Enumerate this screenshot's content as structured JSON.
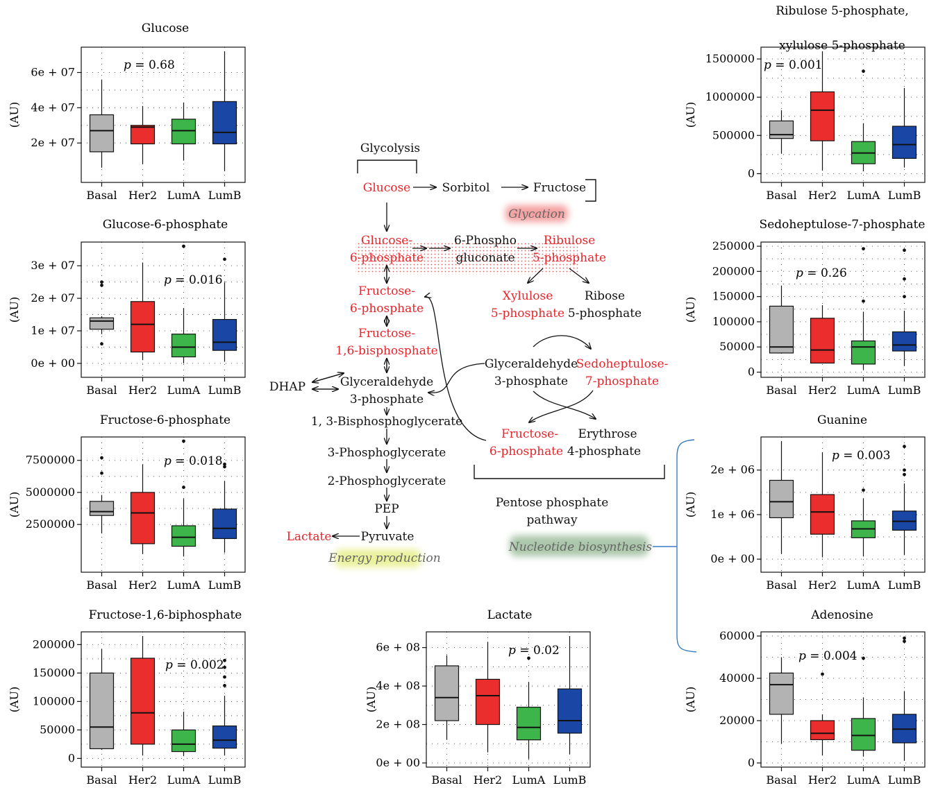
{
  "colors": {
    "Basal": "#b3b3b3",
    "Her2": "#ea2e2e",
    "LumA": "#3db54a",
    "LumB": "#1a47a6",
    "red_text": "#e8252b",
    "glycation_glow": "#f08080",
    "energy_glow": "#e8f090",
    "nucleotide_glow": "#8fb48f",
    "bracket_blue": "#3a7cc0"
  },
  "ylabel": "(AU)",
  "chart_data": [
    {
      "type": "box",
      "title": "Glucose",
      "p_value": "= 0.68",
      "categories": [
        "Basal",
        "Her2",
        "LumA",
        "LumB"
      ],
      "yticks": [
        "2e + 07",
        "4e + 07",
        "6e + 07"
      ],
      "ytick_values": [
        20000000,
        40000000,
        60000000
      ],
      "ylim": [
        0,
        72000000
      ],
      "boxes": [
        {
          "min": 6000000,
          "q1": 15000000,
          "median": 27000000,
          "q3": 36000000,
          "max": 56000000,
          "outliers": []
        },
        {
          "min": 8000000,
          "q1": 19500000,
          "median": 29000000,
          "q3": 30000000,
          "max": 41000000,
          "outliers": []
        },
        {
          "min": 10000000,
          "q1": 19500000,
          "median": 27000000,
          "q3": 33500000,
          "max": 43000000,
          "outliers": []
        },
        {
          "min": 4000000,
          "q1": 19500000,
          "median": 26000000,
          "q3": 43500000,
          "max": 72000000,
          "outliers": []
        }
      ]
    },
    {
      "type": "box",
      "title": "Glucose-6-phosphate",
      "p_value": "= 0.016",
      "categories": [
        "Basal",
        "Her2",
        "LumA",
        "LumB"
      ],
      "yticks": [
        "0e + 00",
        "1e + 07",
        "2e + 07",
        "3e + 07"
      ],
      "ytick_values": [
        0,
        10000000,
        20000000,
        30000000
      ],
      "ylim": [
        -3000000,
        36000000
      ],
      "boxes": [
        {
          "min": 9000000,
          "q1": 10500000,
          "median": 13000000,
          "q3": 14000000,
          "max": 14500000,
          "outliers": [
            6000000,
            24000000,
            25000000
          ]
        },
        {
          "min": 1000000,
          "q1": 3500000,
          "median": 12000000,
          "q3": 19000000,
          "max": 31000000,
          "outliers": []
        },
        {
          "min": 0,
          "q1": 2000000,
          "median": 5000000,
          "q3": 9000000,
          "max": 17000000,
          "outliers": [
            36000000
          ]
        },
        {
          "min": 500000,
          "q1": 4000000,
          "median": 6500000,
          "q3": 13500000,
          "max": 25000000,
          "outliers": [
            32000000
          ]
        }
      ]
    },
    {
      "type": "box",
      "title": "Fructose-6-phosphate",
      "p_value": "= 0.018",
      "categories": [
        "Basal",
        "Her2",
        "LumA",
        "LumB"
      ],
      "yticks": [
        "2500000",
        "5000000",
        "7500000"
      ],
      "ytick_values": [
        2500000,
        5000000,
        7500000
      ],
      "ylim": [
        -900000,
        9000000
      ],
      "boxes": [
        {
          "min": 1800000,
          "q1": 3200000,
          "median": 3500000,
          "q3": 4300000,
          "max": 4800000,
          "outliers": [
            6500000,
            7700000
          ]
        },
        {
          "min": 200000,
          "q1": 1000000,
          "median": 3400000,
          "q3": 5000000,
          "max": 7200000,
          "outliers": []
        },
        {
          "min": 0,
          "q1": 800000,
          "median": 1500000,
          "q3": 2400000,
          "max": 4500000,
          "outliers": [
            5400000,
            9000000
          ]
        },
        {
          "min": 300000,
          "q1": 1400000,
          "median": 2200000,
          "q3": 3700000,
          "max": 5900000,
          "outliers": [
            7000000,
            7200000
          ]
        }
      ]
    },
    {
      "type": "box",
      "title": "Fructose-1,6-biphosphate",
      "p_value": "= 0.002",
      "categories": [
        "Basal",
        "Her2",
        "LumA",
        "LumB"
      ],
      "yticks": [
        "0",
        "50000",
        "100000",
        "150000",
        "200000"
      ],
      "ytick_values": [
        0,
        50000,
        100000,
        150000,
        200000
      ],
      "ylim": [
        -8000,
        215000
      ],
      "boxes": [
        {
          "min": 15000,
          "q1": 17000,
          "median": 55000,
          "q3": 150000,
          "max": 192000,
          "outliers": []
        },
        {
          "min": 5000,
          "q1": 25000,
          "median": 80000,
          "q3": 176000,
          "max": 215000,
          "outliers": []
        },
        {
          "min": 4000,
          "q1": 12000,
          "median": 25000,
          "q3": 50000,
          "max": 82000,
          "outliers": []
        },
        {
          "min": 5000,
          "q1": 18000,
          "median": 32000,
          "q3": 57000,
          "max": 110000,
          "outliers": [
            128000,
            143000,
            160000,
            172000
          ]
        }
      ]
    },
    {
      "type": "box",
      "title": "Lactate",
      "p_value": "= 0.02",
      "categories": [
        "Basal",
        "Her2",
        "LumA",
        "LumB"
      ],
      "yticks": [
        "0e + 00",
        "2e + 08",
        "4e + 08",
        "6e + 08"
      ],
      "ytick_values": [
        0,
        200000000,
        400000000,
        600000000
      ],
      "ylim": [
        0,
        660000000
      ],
      "boxes": [
        {
          "min": 120000000,
          "q1": 220000000,
          "median": 340000000,
          "q3": 505000000,
          "max": 560000000,
          "outliers": []
        },
        {
          "min": 55000000,
          "q1": 200000000,
          "median": 350000000,
          "q3": 435000000,
          "max": 630000000,
          "outliers": []
        },
        {
          "min": 20000000,
          "q1": 120000000,
          "median": 185000000,
          "q3": 290000000,
          "max": 420000000,
          "outliers": [
            545000000
          ]
        },
        {
          "min": 45000000,
          "q1": 155000000,
          "median": 220000000,
          "q3": 385000000,
          "max": 660000000,
          "outliers": []
        }
      ]
    },
    {
      "type": "box",
      "title": "Ribulose 5-phosphate,\nxylulose 5-phosphate",
      "p_value": "= 0.001",
      "categories": [
        "Basal",
        "Her2",
        "LumA",
        "LumB"
      ],
      "yticks": [
        "0",
        "500000",
        "1000000",
        "1500000"
      ],
      "ytick_values": [
        0,
        500000,
        1000000,
        1500000
      ],
      "ylim": [
        -60000,
        1600000
      ],
      "boxes": [
        {
          "min": 260000,
          "q1": 460000,
          "median": 510000,
          "q3": 690000,
          "max": 830000,
          "outliers": []
        },
        {
          "min": 40000,
          "q1": 430000,
          "median": 830000,
          "q3": 1070000,
          "max": 1600000,
          "outliers": []
        },
        {
          "min": 30000,
          "q1": 130000,
          "median": 270000,
          "q3": 420000,
          "max": 660000,
          "outliers": [
            1340000
          ]
        },
        {
          "min": 80000,
          "q1": 200000,
          "median": 380000,
          "q3": 620000,
          "max": 1120000,
          "outliers": []
        }
      ]
    },
    {
      "type": "box",
      "title": "Sedoheptulose-7-phosphate",
      "p_value": "= 0.26",
      "categories": [
        "Basal",
        "Her2",
        "LumA",
        "LumB"
      ],
      "yticks": [
        "0",
        "50000",
        "100000",
        "150000",
        "200000",
        "250000"
      ],
      "ytick_values": [
        0,
        50000,
        100000,
        150000,
        200000,
        250000
      ],
      "ylim": [
        -2000,
        250000
      ],
      "boxes": [
        {
          "min": 38000,
          "q1": 38000,
          "median": 50000,
          "q3": 131000,
          "max": 172000,
          "outliers": []
        },
        {
          "min": 18000,
          "q1": 18000,
          "median": 44000,
          "q3": 107000,
          "max": 133000,
          "outliers": []
        },
        {
          "min": 5000,
          "q1": 16000,
          "median": 50000,
          "q3": 62000,
          "max": 120000,
          "outliers": [
            141000,
            245000
          ]
        },
        {
          "min": 12000,
          "q1": 42000,
          "median": 54000,
          "q3": 80000,
          "max": 122000,
          "outliers": [
            150000,
            185000,
            242000
          ]
        }
      ]
    },
    {
      "type": "box",
      "title": "Guanine",
      "p_value": "= 0.003",
      "categories": [
        "Basal",
        "Her2",
        "LumA",
        "LumB"
      ],
      "yticks": [
        "0e + 00",
        "1e + 06",
        "2e + 06"
      ],
      "ytick_values": [
        0,
        1000000,
        2000000
      ],
      "ylim": [
        -200000,
        2650000
      ],
      "boxes": [
        {
          "min": 120000,
          "q1": 930000,
          "median": 1290000,
          "q3": 1770000,
          "max": 2650000,
          "outliers": []
        },
        {
          "min": 40000,
          "q1": 560000,
          "median": 1060000,
          "q3": 1450000,
          "max": 2400000,
          "outliers": []
        },
        {
          "min": 60000,
          "q1": 480000,
          "median": 680000,
          "q3": 860000,
          "max": 1360000,
          "outliers": [
            1550000
          ]
        },
        {
          "min": 90000,
          "q1": 650000,
          "median": 850000,
          "q3": 1080000,
          "max": 1700000,
          "outliers": [
            1900000,
            2000000,
            2530000
          ]
        }
      ]
    },
    {
      "type": "box",
      "title": "Adenosine",
      "p_value": "= 0.004",
      "categories": [
        "Basal",
        "Her2",
        "LumA",
        "LumB"
      ],
      "yticks": [
        "0",
        "20000",
        "40000",
        "60000"
      ],
      "ytick_values": [
        0,
        20000,
        40000,
        60000
      ],
      "ylim": [
        0,
        60000
      ],
      "boxes": [
        {
          "min": 9000,
          "q1": 23000,
          "median": 37000,
          "q3": 42500,
          "max": 50000,
          "outliers": []
        },
        {
          "min": 3500,
          "q1": 11000,
          "median": 14000,
          "q3": 20000,
          "max": 23000,
          "outliers": [
            42000
          ]
        },
        {
          "min": 3000,
          "q1": 6000,
          "median": 13000,
          "q3": 21000,
          "max": 31000,
          "outliers": [
            49500
          ]
        },
        {
          "min": 1000,
          "q1": 9500,
          "median": 16000,
          "q3": 23000,
          "max": 34000,
          "outliers": [
            57500,
            59000
          ]
        }
      ]
    }
  ],
  "pathway": {
    "glycolysis": "Glycolysis",
    "glucose": "Glucose",
    "sorbitol": "Sorbitol",
    "fructose": "Fructose",
    "glycation": "Glycation",
    "g6p_1": "Glucose-",
    "g6p_2": "6-phosphate",
    "pg_1": "6-Phospho",
    "pg_2": "gluconate",
    "r5p_1": "Ribulose",
    "r5p_2": "5-phosphate",
    "f6p_1": "Fructose-",
    "f6p_2": "6-phosphate",
    "fbp_1": "Fructose-",
    "fbp_2": "1,6-bisphosphate",
    "xyl_1": "Xylulose",
    "xyl_2": "5-phosphate",
    "rib_1": "Ribose",
    "rib_2": "5-phosphate",
    "dhap": "DHAP",
    "g3p_1": "Glyceraldehyde",
    "g3p_2": "3-phosphate",
    "g3pp_1": "Glyceraldehyde",
    "g3pp_2": "3-phosphate",
    "s7p_1": "Sedoheptulose-",
    "s7p_2": "7-phosphate",
    "bpg": "1, 3-Bisphosphoglycerate",
    "pg3": "3-Phosphoglycerate",
    "pg2": "2-Phosphoglycerate",
    "pep": "PEP",
    "lactate": "Lactate",
    "pyruvate": "Pyruvate",
    "energy": "Energy production",
    "f6pp_1": "Fructose-",
    "f6pp_2": "6-phosphate",
    "ery_1": "Erythrose",
    "ery_2": "4-phosphate",
    "ppp_1": "Pentose phosphate",
    "ppp_2": "pathway",
    "nucleotide": "Nucleotide biosynthesis"
  }
}
